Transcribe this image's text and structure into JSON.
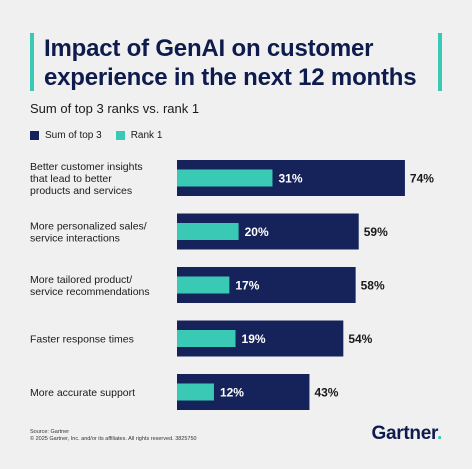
{
  "title": "Impact of GenAI on customer experience in the next 12 months",
  "subtitle": "Sum of top 3 ranks vs. rank 1",
  "colors": {
    "navy": "#16235a",
    "teal": "#3ac9b5",
    "accent": "#3ac9b5",
    "background": "#f1f0f1"
  },
  "chart_data": {
    "type": "bar",
    "orientation": "horizontal",
    "categories": [
      [
        "Better customer insights",
        "that lead to better",
        "products and services"
      ],
      [
        "More personalized sales/",
        "service interactions"
      ],
      [
        "More tailored product/",
        "service recommendations"
      ],
      [
        "Faster response times"
      ],
      [
        "More accurate support"
      ]
    ],
    "series": [
      {
        "name": "Sum of top 3",
        "color": "#16235a",
        "values": [
          74,
          59,
          58,
          54,
          43
        ],
        "labels": [
          "74%",
          "59%",
          "58%",
          "54%",
          "43%"
        ]
      },
      {
        "name": "Rank 1",
        "color": "#3ac9b5",
        "values": [
          31,
          20,
          17,
          19,
          12
        ],
        "labels": [
          "31%",
          "20%",
          "17%",
          "19%",
          "12%"
        ]
      }
    ],
    "xlim": [
      0,
      100
    ],
    "legend": "top-left",
    "grid": false
  },
  "footer": {
    "source": "Source: Gartner",
    "copyright": "© 2025 Gartner, Inc. and/or its affiliates. All rights reserved. 3825750"
  },
  "logo": {
    "text": "Gartner",
    "dot": "."
  }
}
